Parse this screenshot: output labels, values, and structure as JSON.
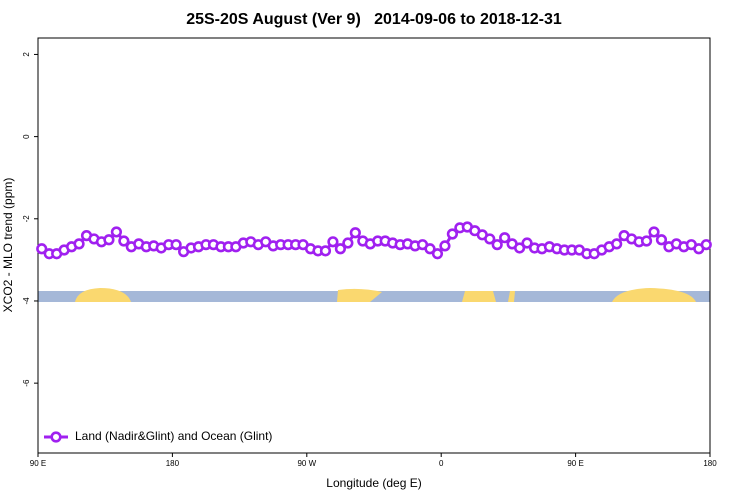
{
  "chart_data": {
    "type": "line",
    "title": "25S-20S August (Ver 9)   2014-09-06 to 2018-12-31",
    "x_label": "Longitude (deg E)",
    "y_label": "XCO2 - MLO trend (ppm)",
    "xlim": [
      90,
      540
    ],
    "ylim": [
      -7.7,
      2.4
    ],
    "xticks": [
      {
        "value": 90,
        "label": "90 E"
      },
      180,
      {
        "value": 270,
        "label": "90 W"
      },
      {
        "value": 360,
        "label": "0"
      },
      {
        "value": 450,
        "label": "90 E"
      },
      {
        "value": 540,
        "label": "180"
      }
    ],
    "yticks": [
      2,
      0,
      -2,
      -4,
      -6
    ],
    "legend_position": "bottom-left",
    "x": [
      92.5,
      97.5,
      102.5,
      107.5,
      112.5,
      117.5,
      122.5,
      127.5,
      132.5,
      137.5,
      142.5,
      147.5,
      152.5,
      157.5,
      162.5,
      167.5,
      172.5,
      177.5,
      182.5,
      187.5,
      192.5,
      197.5,
      202.5,
      207.5,
      212.5,
      217.5,
      222.5,
      227.5,
      232.5,
      237.5,
      242.5,
      247.5,
      252.5,
      257.5,
      262.5,
      267.5,
      272.5,
      277.5,
      282.5,
      287.5,
      292.5,
      297.5,
      302.5,
      307.5,
      312.5,
      317.5,
      322.5,
      327.5,
      332.5,
      337.5,
      342.5,
      347.5,
      352.5,
      357.5,
      362.5,
      367.5,
      372.5,
      377.5,
      382.5,
      387.5,
      392.5,
      397.5,
      402.5,
      407.5,
      412.5,
      417.5,
      422.5,
      427.5,
      432.5,
      437.5,
      442.5,
      447.5,
      452.5,
      457.5,
      462.5,
      467.5,
      472.5,
      477.5,
      482.5,
      487.5,
      492.5,
      497.5,
      502.5,
      507.5,
      512.5,
      517.5,
      522.5,
      527.5,
      532.5,
      537.5
    ],
    "series": [
      {
        "name": "Land (Nadir&Glint) and Ocean (Glint)",
        "color": "#a020f0",
        "values": [
          -2.73,
          -2.85,
          -2.85,
          -2.76,
          -2.68,
          -2.61,
          -2.41,
          -2.49,
          -2.56,
          -2.51,
          -2.32,
          -2.54,
          -2.68,
          -2.61,
          -2.68,
          -2.66,
          -2.71,
          -2.63,
          -2.63,
          -2.8,
          -2.71,
          -2.68,
          -2.63,
          -2.63,
          -2.68,
          -2.68,
          -2.68,
          -2.59,
          -2.56,
          -2.63,
          -2.56,
          -2.66,
          -2.63,
          -2.63,
          -2.63,
          -2.63,
          -2.73,
          -2.78,
          -2.78,
          -2.56,
          -2.73,
          -2.59,
          -2.34,
          -2.54,
          -2.61,
          -2.54,
          -2.54,
          -2.59,
          -2.63,
          -2.61,
          -2.66,
          -2.63,
          -2.73,
          -2.85,
          -2.66,
          -2.37,
          -2.22,
          -2.2,
          -2.29,
          -2.39,
          -2.49,
          -2.63,
          -2.46,
          -2.61,
          -2.71,
          -2.59,
          -2.71,
          -2.73,
          -2.68,
          -2.73,
          -2.76,
          -2.76,
          -2.76,
          -2.85,
          -2.85,
          -2.76,
          -2.68,
          -2.61,
          -2.41,
          -2.49,
          -2.56,
          -2.54,
          -2.32,
          -2.51,
          -2.68,
          -2.61,
          -2.68,
          -2.63,
          -2.73,
          -2.63
        ]
      }
    ]
  }
}
